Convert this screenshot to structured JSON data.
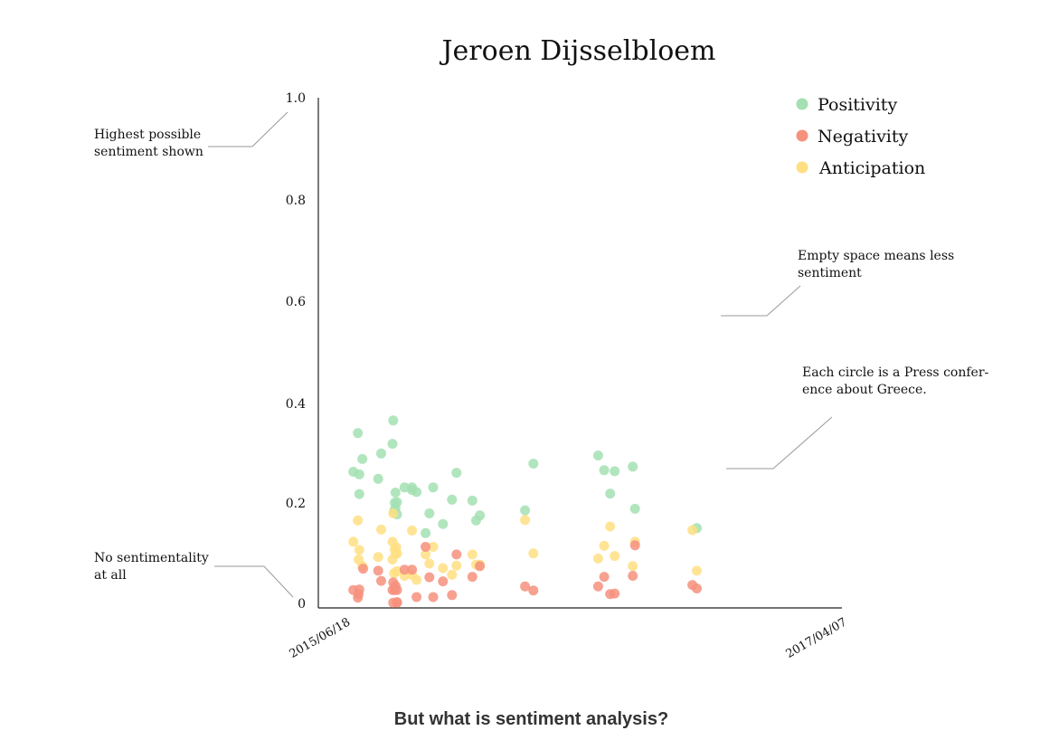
{
  "chart_data": {
    "type": "scatter",
    "title": "Jeroen Dijsselbloem",
    "y_ticks": [
      "0",
      "0.2",
      "0.4",
      "0.6",
      "0.8",
      "1.0"
    ],
    "ylim": [
      0,
      1
    ],
    "x_ticks": [
      "2015/06/18",
      "2017/04/07"
    ],
    "xlim": [
      "2015/06/18",
      "2017/04/07"
    ],
    "grid": false,
    "legend_position": "top-right",
    "colors": {
      "Positivity": "#a3e0b3",
      "Negativity": "#f6917e",
      "Anticipation": "#ffdf82"
    },
    "series": [
      {
        "name": "Positivity",
        "points": [
          [
            "2015/06/26",
            0.263
          ],
          [
            "2015/07/02",
            0.339
          ],
          [
            "2015/07/04",
            0.258
          ],
          [
            "2015/07/04",
            0.219
          ],
          [
            "2015/07/08",
            0.288
          ],
          [
            "2015/07/29",
            0.249
          ],
          [
            "2015/08/02",
            0.299
          ],
          [
            "2015/08/17",
            0.318
          ],
          [
            "2015/08/18",
            0.364
          ],
          [
            "2015/08/19",
            0.185
          ],
          [
            "2015/08/20",
            0.202
          ],
          [
            "2015/08/21",
            0.222
          ],
          [
            "2015/08/21",
            0.191
          ],
          [
            "2015/08/23",
            0.203
          ],
          [
            "2015/08/23",
            0.179
          ],
          [
            "2015/09/02",
            0.232
          ],
          [
            "2015/09/12",
            0.232
          ],
          [
            "2015/09/12",
            0.227
          ],
          [
            "2015/09/18",
            0.223
          ],
          [
            "2015/09/30",
            0.142
          ],
          [
            "2015/10/05",
            0.181
          ],
          [
            "2015/10/10",
            0.232
          ],
          [
            "2015/10/23",
            0.16
          ],
          [
            "2015/11/04",
            0.208
          ],
          [
            "2015/11/10",
            0.261
          ],
          [
            "2015/12/01",
            0.206
          ],
          [
            "2015/12/06",
            0.167
          ],
          [
            "2015/12/11",
            0.177
          ],
          [
            "2016/02/09",
            0.187
          ],
          [
            "2016/02/20",
            0.279
          ],
          [
            "2016/05/16",
            0.295
          ],
          [
            "2016/05/24",
            0.266
          ],
          [
            "2016/06/01",
            0.22
          ],
          [
            "2016/06/07",
            0.264
          ],
          [
            "2016/07/01",
            0.273
          ],
          [
            "2016/07/04",
            0.19
          ],
          [
            "2016/09/24",
            0.152
          ]
        ]
      },
      {
        "name": "Negativity",
        "points": [
          [
            "2015/06/26",
            0.03
          ],
          [
            "2015/07/02",
            0.015
          ],
          [
            "2015/07/03",
            0.022
          ],
          [
            "2015/07/04",
            0.031
          ],
          [
            "2015/07/09",
            0.072
          ],
          [
            "2015/07/29",
            0.068
          ],
          [
            "2015/08/02",
            0.048
          ],
          [
            "2015/08/17",
            0.03
          ],
          [
            "2015/08/18",
            0.045
          ],
          [
            "2015/08/18",
            0.005
          ],
          [
            "2015/08/20",
            0.03
          ],
          [
            "2015/08/21",
            0.038
          ],
          [
            "2015/08/23",
            0.005
          ],
          [
            "2015/08/23",
            0.03
          ],
          [
            "2015/08/23",
            0.006
          ],
          [
            "2015/09/02",
            0.07
          ],
          [
            "2015/09/12",
            0.07
          ],
          [
            "2015/09/18",
            0.016
          ],
          [
            "2015/09/30",
            0.115
          ],
          [
            "2015/10/05",
            0.055
          ],
          [
            "2015/10/10",
            0.016
          ],
          [
            "2015/10/23",
            0.047
          ],
          [
            "2015/11/04",
            0.02
          ],
          [
            "2015/11/10",
            0.1
          ],
          [
            "2015/12/01",
            0.056
          ],
          [
            "2015/12/11",
            0.077
          ],
          [
            "2016/02/09",
            0.037
          ],
          [
            "2016/02/20",
            0.029
          ],
          [
            "2016/05/16",
            0.037
          ],
          [
            "2016/05/24",
            0.056
          ],
          [
            "2016/06/01",
            0.022
          ],
          [
            "2016/06/07",
            0.023
          ],
          [
            "2016/07/01",
            0.058
          ],
          [
            "2016/07/04",
            0.118
          ],
          [
            "2016/09/18",
            0.04
          ],
          [
            "2016/09/24",
            0.033
          ]
        ]
      },
      {
        "name": "Anticipation",
        "points": [
          [
            "2015/06/26",
            0.125
          ],
          [
            "2015/07/02",
            0.167
          ],
          [
            "2015/07/03",
            0.09
          ],
          [
            "2015/07/04",
            0.109
          ],
          [
            "2015/07/08",
            0.077
          ],
          [
            "2015/07/29",
            0.095
          ],
          [
            "2015/08/02",
            0.149
          ],
          [
            "2015/08/17",
            0.09
          ],
          [
            "2015/08/17",
            0.125
          ],
          [
            "2015/08/18",
            0.181
          ],
          [
            "2015/08/19",
            0.063
          ],
          [
            "2015/08/20",
            0.11
          ],
          [
            "2015/08/21",
            0.102
          ],
          [
            "2015/08/22",
            0.114
          ],
          [
            "2015/08/23",
            0.067
          ],
          [
            "2015/08/23",
            0.102
          ],
          [
            "2015/09/02",
            0.058
          ],
          [
            "2015/09/12",
            0.147
          ],
          [
            "2015/09/12",
            0.06
          ],
          [
            "2015/09/18",
            0.05
          ],
          [
            "2015/09/30",
            0.1
          ],
          [
            "2015/10/05",
            0.082
          ],
          [
            "2015/10/10",
            0.115
          ],
          [
            "2015/10/23",
            0.073
          ],
          [
            "2015/11/04",
            0.06
          ],
          [
            "2015/11/10",
            0.078
          ],
          [
            "2015/12/01",
            0.1
          ],
          [
            "2015/12/06",
            0.08
          ],
          [
            "2015/12/11",
            0.08
          ],
          [
            "2016/02/09",
            0.168
          ],
          [
            "2016/02/20",
            0.102
          ],
          [
            "2016/05/16",
            0.092
          ],
          [
            "2016/05/24",
            0.117
          ],
          [
            "2016/06/01",
            0.155
          ],
          [
            "2016/06/07",
            0.097
          ],
          [
            "2016/07/01",
            0.077
          ],
          [
            "2016/07/04",
            0.125
          ],
          [
            "2016/09/18",
            0.148
          ],
          [
            "2016/09/24",
            0.068
          ]
        ]
      }
    ]
  },
  "annotations": {
    "highest": [
      "Highest possible",
      "sentiment shown"
    ],
    "none": [
      "No sentimentality",
      "at all"
    ],
    "empty": [
      "Empty space means less",
      "sentiment"
    ],
    "circle": [
      "Each circle is a Press confer-",
      "ence about Greece."
    ]
  },
  "footer": {
    "text": "But what is sentiment analysis?"
  }
}
